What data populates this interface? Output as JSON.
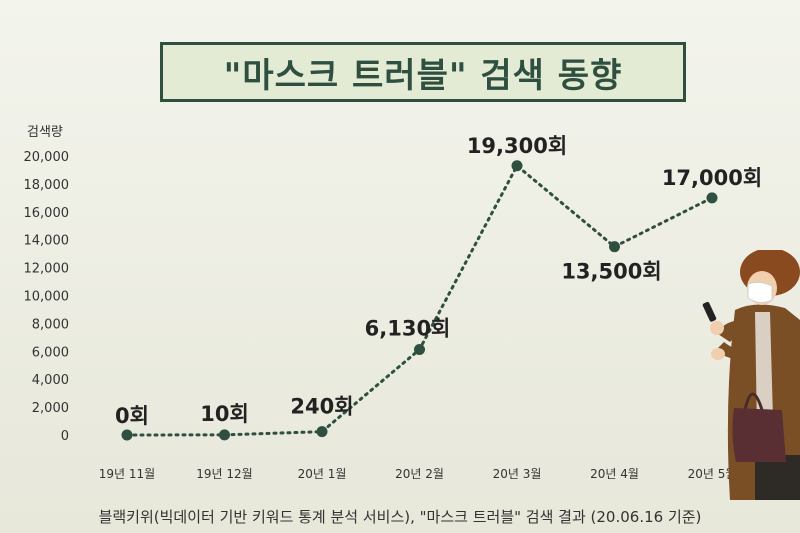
{
  "title": "\"마스크 트러블\" 검색 동향",
  "source_note": "블랙키위(빅데이터 기반 키워드 통계 분석 서비스), \"마스크 트러블\" 검색 결과 (20.06.16 기준)",
  "colors": {
    "accent": "#2f4f40",
    "title_bg": "#e3ebd4",
    "line": "#2f4f40"
  },
  "chart_data": {
    "type": "line",
    "title": "\"마스크 트러블\" 검색 동향",
    "xlabel": "",
    "ylabel": "검색량",
    "categories": [
      "19년 11월",
      "19년 12월",
      "20년 1월",
      "20년 2월",
      "20년 3월",
      "20년 4월",
      "20년 5월"
    ],
    "values": [
      0,
      10,
      240,
      6130,
      19300,
      13500,
      17000
    ],
    "data_labels": [
      "0회",
      "10회",
      "240회",
      "6,130회",
      "19,300회",
      "13,500회",
      "17,000회"
    ],
    "yticks": [
      "0",
      "2,000",
      "4,000",
      "6,000",
      "8,000",
      "10,000",
      "12,000",
      "14,000",
      "16,000",
      "18,000",
      "20,000"
    ],
    "ylim": [
      0,
      20000
    ],
    "grid": false,
    "line_style": "dotted"
  }
}
